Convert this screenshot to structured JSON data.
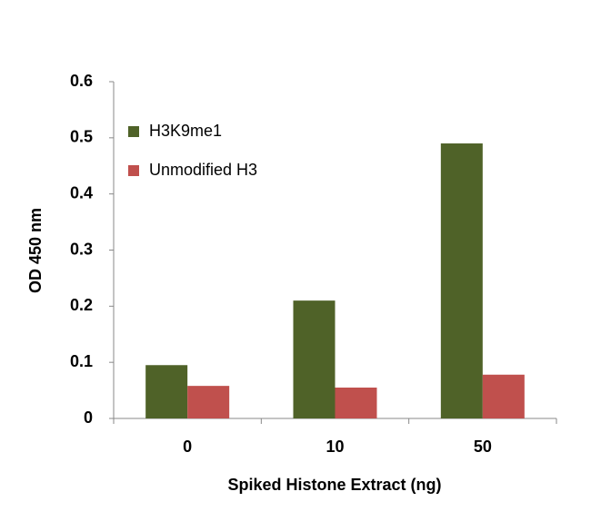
{
  "chart_data": {
    "type": "bar",
    "x_label": "Spiked Histone Extract (ng)",
    "y_label": "OD 450 nm",
    "categories": [
      "0",
      "10",
      "50"
    ],
    "series": [
      {
        "name": "H3K9me1",
        "color": "#4f6228",
        "values": [
          0.095,
          0.21,
          0.49
        ]
      },
      {
        "name": "Unmodified H3",
        "color": "#c0504d",
        "values": [
          0.058,
          0.055,
          0.078
        ]
      }
    ],
    "ylim": [
      0,
      0.6
    ],
    "yticks": [
      0,
      0.1,
      0.2,
      0.3,
      0.4,
      0.5,
      0.6
    ],
    "legend": "upper-left"
  }
}
